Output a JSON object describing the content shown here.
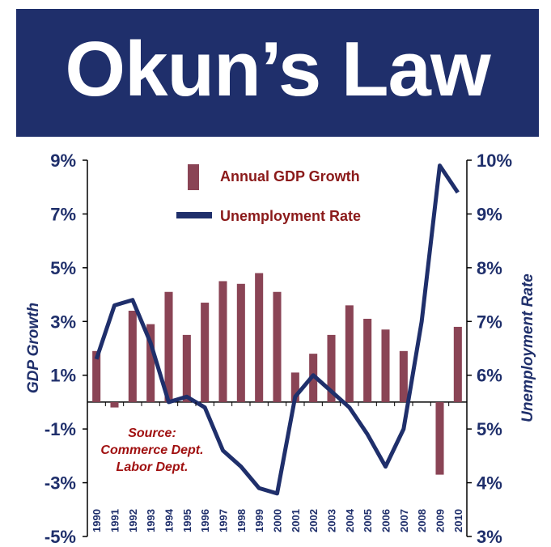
{
  "title": "Okun’s Law",
  "colors": {
    "banner": "#1f2f6b",
    "bar": "#8a4455",
    "line": "#1f2f6b",
    "legend_text": "#8b1a1a",
    "source_text": "#a01010"
  },
  "chart_data": {
    "type": "bar+line",
    "categories": [
      "1990",
      "1991",
      "1992",
      "1993",
      "1994",
      "1995",
      "1996",
      "1997",
      "1998",
      "1999",
      "2000",
      "2001",
      "2002",
      "2003",
      "2004",
      "2005",
      "2006",
      "2007",
      "2008",
      "2009",
      "2010"
    ],
    "series": [
      {
        "name": "Annual GDP Growth",
        "type": "bar",
        "axis": "left",
        "values": [
          1.9,
          -0.2,
          3.4,
          2.9,
          4.1,
          2.5,
          3.7,
          4.5,
          4.4,
          4.8,
          4.1,
          1.1,
          1.8,
          2.5,
          3.6,
          3.1,
          2.7,
          1.9,
          0.0,
          -2.7,
          2.8
        ]
      },
      {
        "name": "Unemployment Rate",
        "type": "line",
        "axis": "right",
        "values": [
          6.3,
          7.3,
          7.4,
          6.6,
          5.5,
          5.6,
          5.4,
          4.6,
          4.3,
          3.9,
          3.8,
          5.6,
          6.0,
          5.7,
          5.4,
          4.9,
          4.3,
          5.0,
          7.0,
          9.9,
          9.4
        ]
      }
    ],
    "ylabel_left": "GDP Growth",
    "ylabel_right": "Unemployment Rate",
    "ylim_left": [
      -5,
      9
    ],
    "ylim_right": [
      3,
      10
    ],
    "yticks_left": [
      "9%",
      "7%",
      "5%",
      "3%",
      "1%",
      "-1%",
      "-3%",
      "-5%"
    ],
    "yticks_right": [
      "10%",
      "9%",
      "8%",
      "7%",
      "6%",
      "5%",
      "4%",
      "3%"
    ],
    "legend_position": "top-center",
    "annotation": [
      "Source:",
      "Commerce Dept.",
      "Labor Dept."
    ]
  }
}
